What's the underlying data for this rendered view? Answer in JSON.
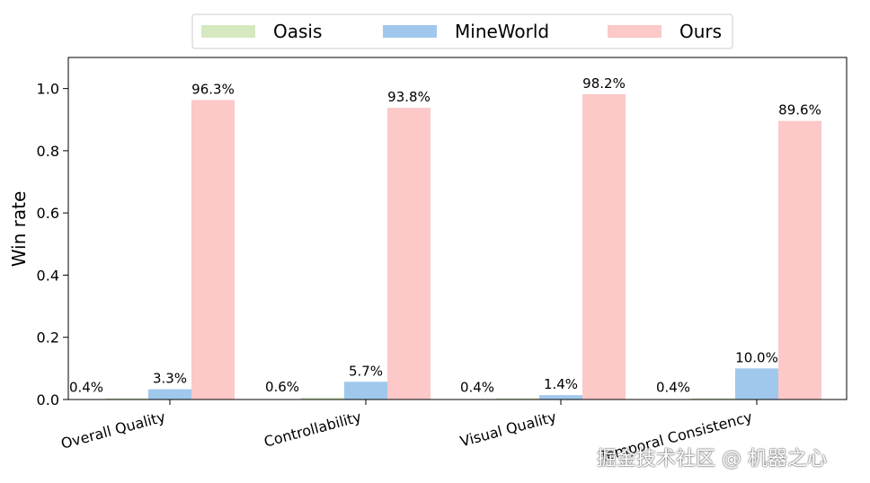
{
  "chart_data": {
    "type": "bar",
    "categories": [
      "Overall Quality",
      "Controllability",
      "Visual Quality",
      "Temporal Consistency"
    ],
    "series": [
      {
        "name": "Oasis",
        "values": [
          0.004,
          0.006,
          0.004,
          0.004
        ],
        "labels": [
          "0.4%",
          "0.6%",
          "0.4%",
          "0.4%"
        ]
      },
      {
        "name": "MineWorld",
        "values": [
          0.033,
          0.057,
          0.014,
          0.1
        ],
        "labels": [
          "3.3%",
          "5.7%",
          "1.4%",
          "10.0%"
        ]
      },
      {
        "name": "Ours",
        "values": [
          0.963,
          0.938,
          0.982,
          0.896
        ],
        "labels": [
          "96.3%",
          "93.8%",
          "98.2%",
          "89.6%"
        ]
      }
    ],
    "colors": {
      "Oasis": "#d5e8c0",
      "MineWorld": "#a0c8ec",
      "Ours": "#fcc8c8"
    },
    "ylabel": "Win rate",
    "xlabel": "",
    "ylim": [
      0,
      1.1
    ],
    "yticks": [
      "0.0",
      "0.2",
      "0.4",
      "0.6",
      "0.8",
      "1.0"
    ],
    "legend_position": "top-center",
    "grid": false
  },
  "watermark": "掘金技术社区 @ 机器之心"
}
